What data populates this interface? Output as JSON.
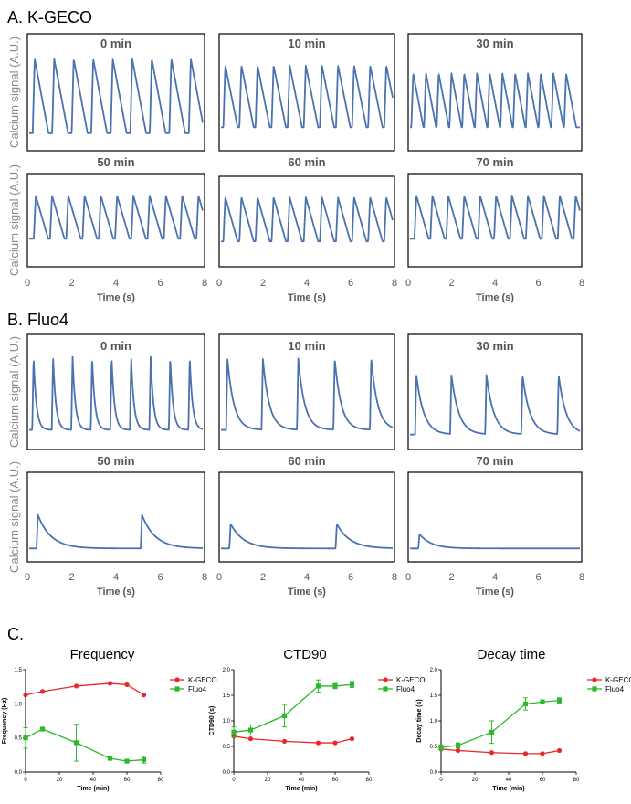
{
  "sections": {
    "a": {
      "label": "A. K-GECO"
    },
    "b": {
      "label": "B. Fluo4"
    },
    "c": {
      "label": "C."
    }
  },
  "trace_axes": {
    "ylabel": "Calcium signal (A.U.)",
    "xlabel": "Time (s)",
    "xlim": [
      0,
      8
    ],
    "xticks": [
      "0",
      "2",
      "4",
      "6",
      "8"
    ]
  },
  "chart_data": [
    {
      "type": "line",
      "group": "K-GECO",
      "title": "0 min",
      "xlim": [
        0,
        8
      ],
      "peaks": [
        0.25,
        1.15,
        2.05,
        2.95,
        3.85,
        4.75,
        5.65,
        6.55,
        7.45
      ],
      "amplitude": 0.88,
      "decay_s": 0.2
    },
    {
      "type": "line",
      "group": "K-GECO",
      "title": "10 min",
      "xlim": [
        0,
        8
      ],
      "peaks": [
        0.2,
        0.95,
        1.7,
        2.45,
        3.2,
        3.95,
        4.7,
        5.45,
        6.2,
        6.95,
        7.7
      ],
      "amplitude": 0.78,
      "decay_s": 0.18
    },
    {
      "type": "line",
      "group": "K-GECO",
      "title": "30 min",
      "xlim": [
        0,
        8
      ],
      "peaks": [
        0.15,
        0.75,
        1.35,
        1.95,
        2.55,
        3.15,
        3.75,
        4.35,
        4.95,
        5.55,
        6.15,
        6.75,
        7.35
      ],
      "amplitude": 0.68,
      "decay_s": 0.15
    },
    {
      "type": "line",
      "group": "K-GECO",
      "title": "50 min",
      "xlim": [
        0,
        8
      ],
      "peaks": [
        0.3,
        1.05,
        1.8,
        2.55,
        3.3,
        4.05,
        4.8,
        5.55,
        6.3,
        7.05,
        7.8
      ],
      "amplitude": 0.78,
      "decay_s": 0.18
    },
    {
      "type": "line",
      "group": "K-GECO",
      "title": "60 min",
      "xlim": [
        0,
        8
      ],
      "peaks": [
        0.2,
        0.95,
        1.7,
        2.45,
        3.2,
        3.95,
        4.7,
        5.45,
        6.2,
        6.95,
        7.7
      ],
      "amplitude": 0.8,
      "decay_s": 0.18
    },
    {
      "type": "line",
      "group": "K-GECO",
      "title": "70 min",
      "xlim": [
        0,
        8
      ],
      "peaks": [
        0.3,
        1.05,
        1.8,
        2.55,
        3.3,
        4.05,
        4.8,
        5.55,
        6.3,
        7.05,
        7.8
      ],
      "amplitude": 0.78,
      "decay_s": 0.18
    },
    {
      "type": "line",
      "group": "Fluo4",
      "title": "0 min",
      "xlim": [
        0,
        8
      ],
      "peaks": [
        0.2,
        1.1,
        2.0,
        2.9,
        3.8,
        4.7,
        5.6,
        6.5,
        7.4
      ],
      "amplitude": 0.9,
      "decay_s": 0.13
    },
    {
      "type": "line",
      "group": "Fluo4",
      "title": "10 min",
      "xlim": [
        0,
        8
      ],
      "peaks": [
        0.3,
        1.95,
        3.6,
        5.3,
        7.0
      ],
      "amplitude": 0.88,
      "decay_s": 0.3
    },
    {
      "type": "line",
      "group": "Fluo4",
      "title": "30 min",
      "xlim": [
        0,
        8
      ],
      "peaks": [
        0.3,
        1.95,
        3.6,
        5.3,
        7.0
      ],
      "amplitude": 0.7,
      "decay_s": 0.35
    },
    {
      "type": "line",
      "group": "Fluo4",
      "title": "50 min",
      "xlim": [
        0,
        8
      ],
      "peaks": [
        0.4,
        5.2
      ],
      "amplitude": 0.52,
      "decay_s": 0.6
    },
    {
      "type": "line",
      "group": "Fluo4",
      "title": "60 min",
      "xlim": [
        0,
        8
      ],
      "peaks": [
        0.45,
        5.4
      ],
      "amplitude": 0.38,
      "decay_s": 0.6
    },
    {
      "type": "line",
      "group": "Fluo4",
      "title": "70 min",
      "xlim": [
        0,
        8
      ],
      "peaks": [
        0.45
      ],
      "amplitude": 0.22,
      "decay_s": 0.55
    },
    {
      "type": "line",
      "title": "Frequency",
      "xlabel": "Time (min)",
      "ylabel": "Frequency (Hz)",
      "xlim": [
        0,
        80
      ],
      "ylim": [
        0,
        1.5
      ],
      "xticks": [
        0,
        20,
        40,
        60,
        80
      ],
      "yticks": [
        0,
        0.5,
        1.0,
        1.5
      ],
      "xtick_labels": [
        "0",
        "20",
        "40",
        "60",
        "80"
      ],
      "ytick_labels": [
        "0.0",
        "0.5",
        "1.0",
        "1.5"
      ],
      "series": [
        {
          "name": "K-GECO",
          "color": "#e8262c",
          "marker": "circle",
          "x": [
            0,
            10,
            30,
            50,
            60,
            70
          ],
          "y": [
            1.13,
            1.18,
            1.26,
            1.3,
            1.28,
            1.13
          ],
          "err": [
            0.02,
            0.02,
            0.02,
            0.02,
            0.02,
            0.02
          ]
        },
        {
          "name": "Fluo4",
          "color": "#2db82d",
          "marker": "square",
          "x": [
            0,
            10,
            30,
            50,
            60,
            70
          ],
          "y": [
            0.5,
            0.63,
            0.43,
            0.2,
            0.16,
            0.18
          ],
          "err": [
            0.15,
            0.03,
            0.27,
            0.02,
            0.02,
            0.05
          ]
        }
      ]
    },
    {
      "type": "line",
      "title": "CTD90",
      "xlabel": "Time (min)",
      "ylabel": "CTD90 (s)",
      "xlim": [
        0,
        80
      ],
      "ylim": [
        0,
        2.0
      ],
      "xticks": [
        0,
        20,
        40,
        60,
        80
      ],
      "yticks": [
        0,
        0.5,
        1.0,
        1.5,
        2.0
      ],
      "xtick_labels": [
        "0",
        "20",
        "40",
        "60",
        "80"
      ],
      "ytick_labels": [
        "0.0",
        "0.5",
        "1.0",
        "1.5",
        "2.0"
      ],
      "series": [
        {
          "name": "K-GECO",
          "color": "#e8262c",
          "marker": "circle",
          "x": [
            0,
            10,
            30,
            50,
            60,
            70
          ],
          "y": [
            0.7,
            0.65,
            0.6,
            0.57,
            0.57,
            0.65
          ],
          "err": [
            0.02,
            0.02,
            0.02,
            0.02,
            0.02,
            0.02
          ]
        },
        {
          "name": "Fluo4",
          "color": "#2db82d",
          "marker": "square",
          "x": [
            0,
            10,
            30,
            50,
            60,
            70
          ],
          "y": [
            0.78,
            0.82,
            1.1,
            1.68,
            1.68,
            1.71
          ],
          "err": [
            0.1,
            0.1,
            0.22,
            0.12,
            0.05,
            0.06
          ]
        }
      ]
    },
    {
      "type": "line",
      "title": "Decay time",
      "xlabel": "Time (min)",
      "ylabel": "Decay time (s)",
      "xlim": [
        0,
        80
      ],
      "ylim": [
        0,
        2.0
      ],
      "xticks": [
        0,
        20,
        40,
        60,
        80
      ],
      "yticks": [
        0,
        0.5,
        1.0,
        1.5,
        2.0
      ],
      "xtick_labels": [
        "0",
        "20",
        "40",
        "60",
        "80"
      ],
      "ytick_labels": [
        "0.0",
        "0.5",
        "1.0",
        "1.5",
        "2.0"
      ],
      "series": [
        {
          "name": "K-GECO",
          "color": "#e8262c",
          "marker": "circle",
          "x": [
            0,
            10,
            30,
            50,
            60,
            70
          ],
          "y": [
            0.45,
            0.42,
            0.38,
            0.36,
            0.36,
            0.42
          ],
          "err": [
            0.02,
            0.02,
            0.02,
            0.02,
            0.02,
            0.02
          ]
        },
        {
          "name": "Fluo4",
          "color": "#2db82d",
          "marker": "square",
          "x": [
            0,
            10,
            30,
            50,
            60,
            70
          ],
          "y": [
            0.48,
            0.52,
            0.78,
            1.33,
            1.37,
            1.4
          ],
          "err": [
            0.05,
            0.05,
            0.22,
            0.12,
            0.04,
            0.05
          ]
        }
      ]
    }
  ]
}
